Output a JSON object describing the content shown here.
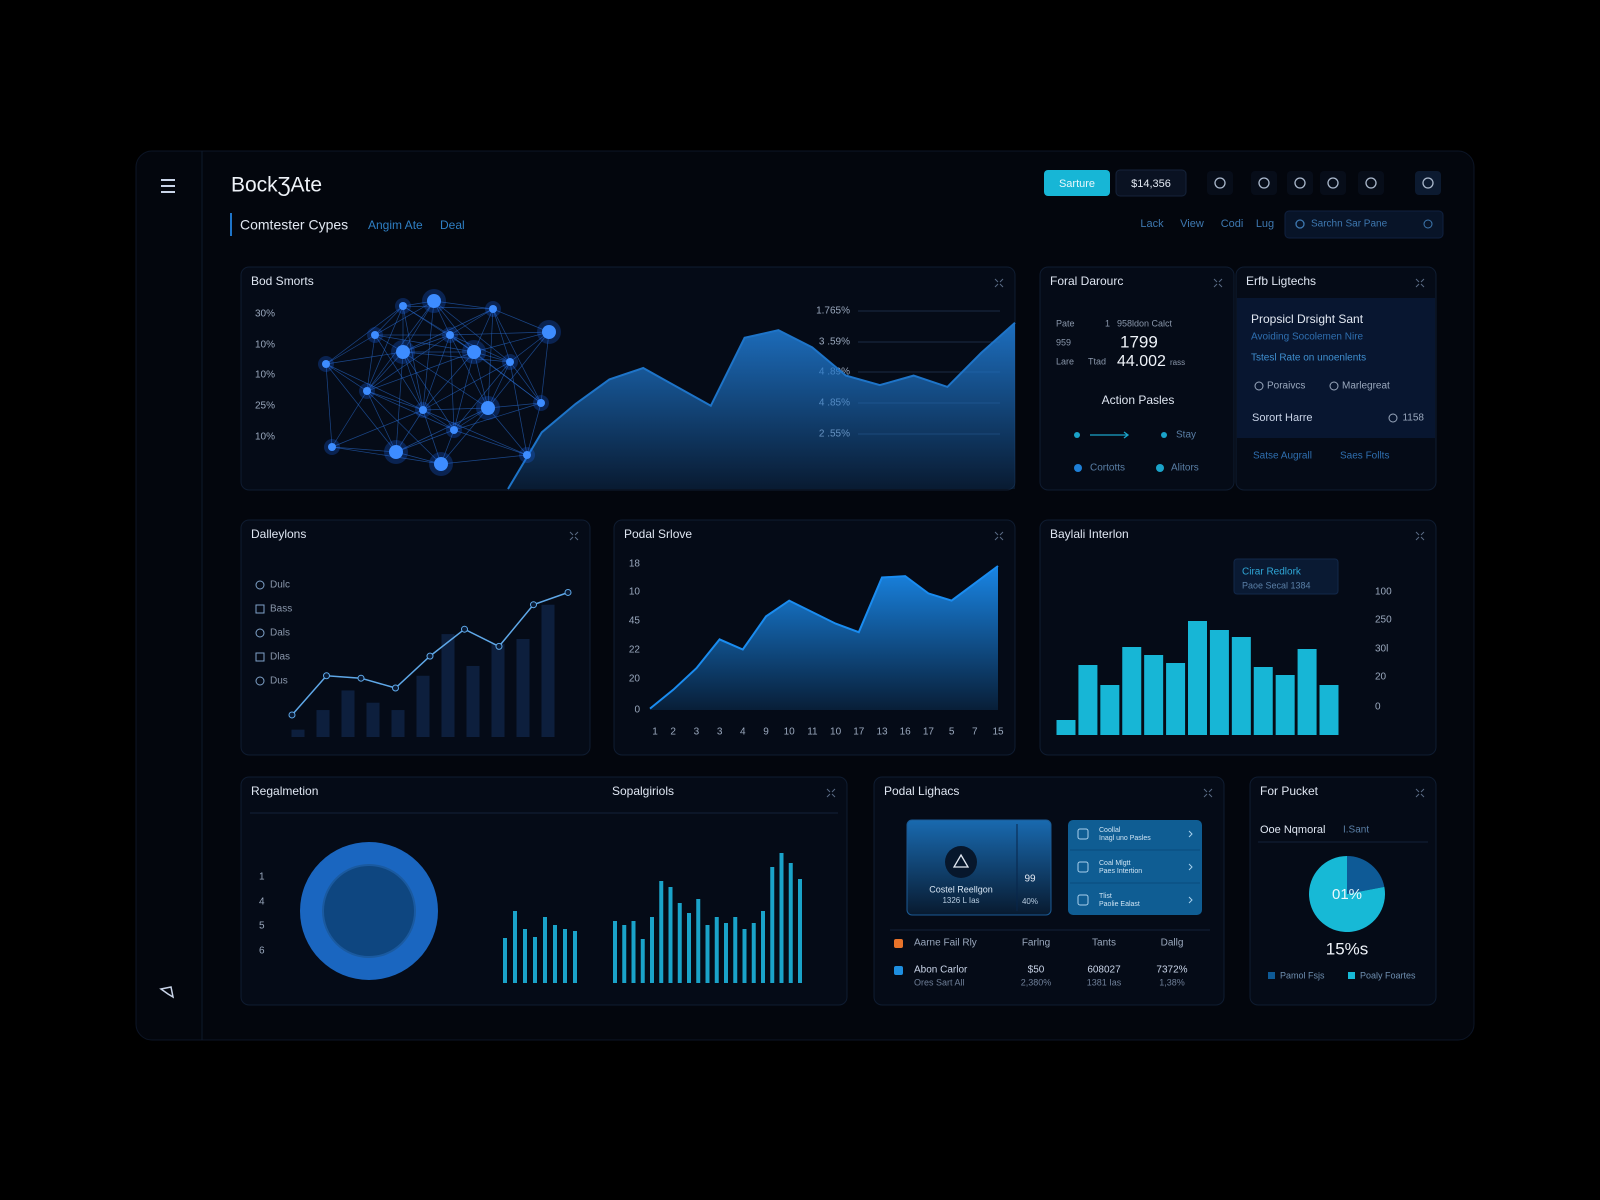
{
  "header": {
    "brand": "BockƷAte",
    "section": "Comtester Cypes",
    "tabs": [
      "Angim Ate",
      "Deal"
    ],
    "button": "Sarture",
    "amount": "$14,356",
    "nav": [
      "Lack",
      "View",
      "Codi",
      "Lug"
    ],
    "search": "Sarchn Sar Pane"
  },
  "smorts": {
    "title": "Bod Smorts",
    "left_labels": [
      "30%",
      "10%",
      "10%",
      "25%",
      "10%"
    ],
    "right_labels": [
      "1.765%",
      "3 .59%",
      "4 .89%",
      "4 .85%",
      "2 .55%"
    ],
    "chart": {
      "type": "area",
      "values": [
        0,
        30,
        45,
        58,
        64,
        54,
        44,
        80,
        84,
        75,
        60,
        55,
        60,
        54,
        72,
        88
      ],
      "ylim": [
        0,
        100
      ],
      "color": "#1e74c8"
    }
  },
  "darourc": {
    "title": "Foral Darourc",
    "rows": [
      [
        "Pate",
        "1",
        "958ldon Calct"
      ],
      [
        "959",
        "1799"
      ],
      [
        "Lare",
        "Ttad",
        "44.002",
        "rass"
      ]
    ],
    "action_title": "Action Pasles",
    "actions": [
      "Stay",
      "Cortotts",
      "Alitors"
    ]
  },
  "ligtechs": {
    "title": "Erfb Ligtechs",
    "heading": "Propsicl Drsight Sant",
    "sub": "Avoiding Socolemen Nire",
    "link": "Tstesl Rate on unoenlents",
    "options": [
      "Poraivcs",
      "Marlegreat"
    ],
    "stat_label": "Sorort Harre",
    "stat_value": "1158",
    "footer": [
      "Satse Augrall",
      "Saes Follts"
    ]
  },
  "dalleylons": {
    "title": "Dalleylons",
    "legend": [
      "Dulc",
      "Bass",
      "Dals",
      "Dlas",
      "Dus"
    ],
    "chart": {
      "type": "combo",
      "bars": [
        3,
        11,
        19,
        14,
        11,
        25,
        42,
        29,
        38,
        40,
        54
      ],
      "line": [
        9,
        25,
        24,
        20,
        33,
        44,
        37,
        54,
        59
      ],
      "ylim": [
        0,
        60
      ],
      "bar_color": "#0d1f3d",
      "line_color": "#5fa8e8"
    }
  },
  "srlove": {
    "title": "Podal Srlove",
    "y_labels": [
      "18",
      "10",
      "45",
      "22",
      "20",
      "0"
    ],
    "chart": {
      "type": "area",
      "categories": [
        "1",
        "2",
        "3",
        "3",
        "4",
        "9",
        "10",
        "11",
        "10",
        "17",
        "13",
        "16",
        "17",
        "5",
        "7",
        "15"
      ],
      "values": [
        1,
        14,
        29,
        49,
        42,
        65,
        76,
        68,
        60,
        54,
        92,
        93,
        81,
        76,
        88,
        100
      ],
      "ylim": [
        0,
        100
      ],
      "color": "#1a8cf0"
    }
  },
  "interlon": {
    "title": "Baylali Interlon",
    "tooltip": [
      "Cirar Redlork",
      "Paoe Secal 1384"
    ],
    "right_labels": [
      "100",
      "250",
      "30l",
      "20",
      "0"
    ],
    "chart": {
      "type": "bar",
      "values": [
        15,
        70,
        50,
        88,
        80,
        72,
        114,
        105,
        98,
        68,
        60,
        86,
        50
      ],
      "ylim": [
        0,
        130
      ],
      "color": "#17b6d6"
    }
  },
  "regalmetion": {
    "title": "Regalmetion",
    "subtitle": "Sopalgiriols",
    "left_labels": [
      "1",
      "4",
      "5",
      "6"
    ],
    "chart": {
      "type": "bar",
      "groups": [
        [
          45,
          72,
          54,
          46,
          66,
          58,
          54,
          52
        ],
        [
          62,
          58,
          62,
          44,
          66,
          102,
          96,
          80,
          70,
          84,
          58,
          66,
          60,
          66,
          54,
          60,
          72,
          116,
          130,
          120,
          104
        ]
      ],
      "ylim": [
        0,
        140
      ],
      "color": "#1aa3c9"
    }
  },
  "lighacs": {
    "title": "Podal Lighacs",
    "card": [
      "Costel Reellgon",
      "1326 L Ias",
      "99",
      "40%"
    ],
    "list": [
      [
        "Coollal",
        "Inagl uno Pasles"
      ],
      [
        "Coal Mlgtt",
        "Paes Intertion"
      ],
      [
        "Tlist",
        "Paolie Ealast"
      ]
    ],
    "table": {
      "headers": [
        "Aarne Fail Rly",
        "Farlng",
        "Tants",
        "Dallg"
      ],
      "rows": [
        [
          [
            "Abon Carlor",
            "Ores Sart All"
          ],
          [
            "$50",
            "2,380%"
          ],
          [
            "608027",
            "1381 Ias"
          ],
          [
            "7372%",
            "1,38%"
          ]
        ]
      ]
    }
  },
  "pucket": {
    "title": "For Pucket",
    "label": "Ooe Nqmoral",
    "label2": "I.Sant",
    "center": "01%",
    "total": "15%s",
    "pie": {
      "type": "pie",
      "series": [
        {
          "name": "Pamol Fsjs",
          "color": "#0e5a96",
          "value": 22
        },
        {
          "name": "Poaly Foartes",
          "color": "#17b9d6",
          "value": 78
        }
      ]
    }
  }
}
